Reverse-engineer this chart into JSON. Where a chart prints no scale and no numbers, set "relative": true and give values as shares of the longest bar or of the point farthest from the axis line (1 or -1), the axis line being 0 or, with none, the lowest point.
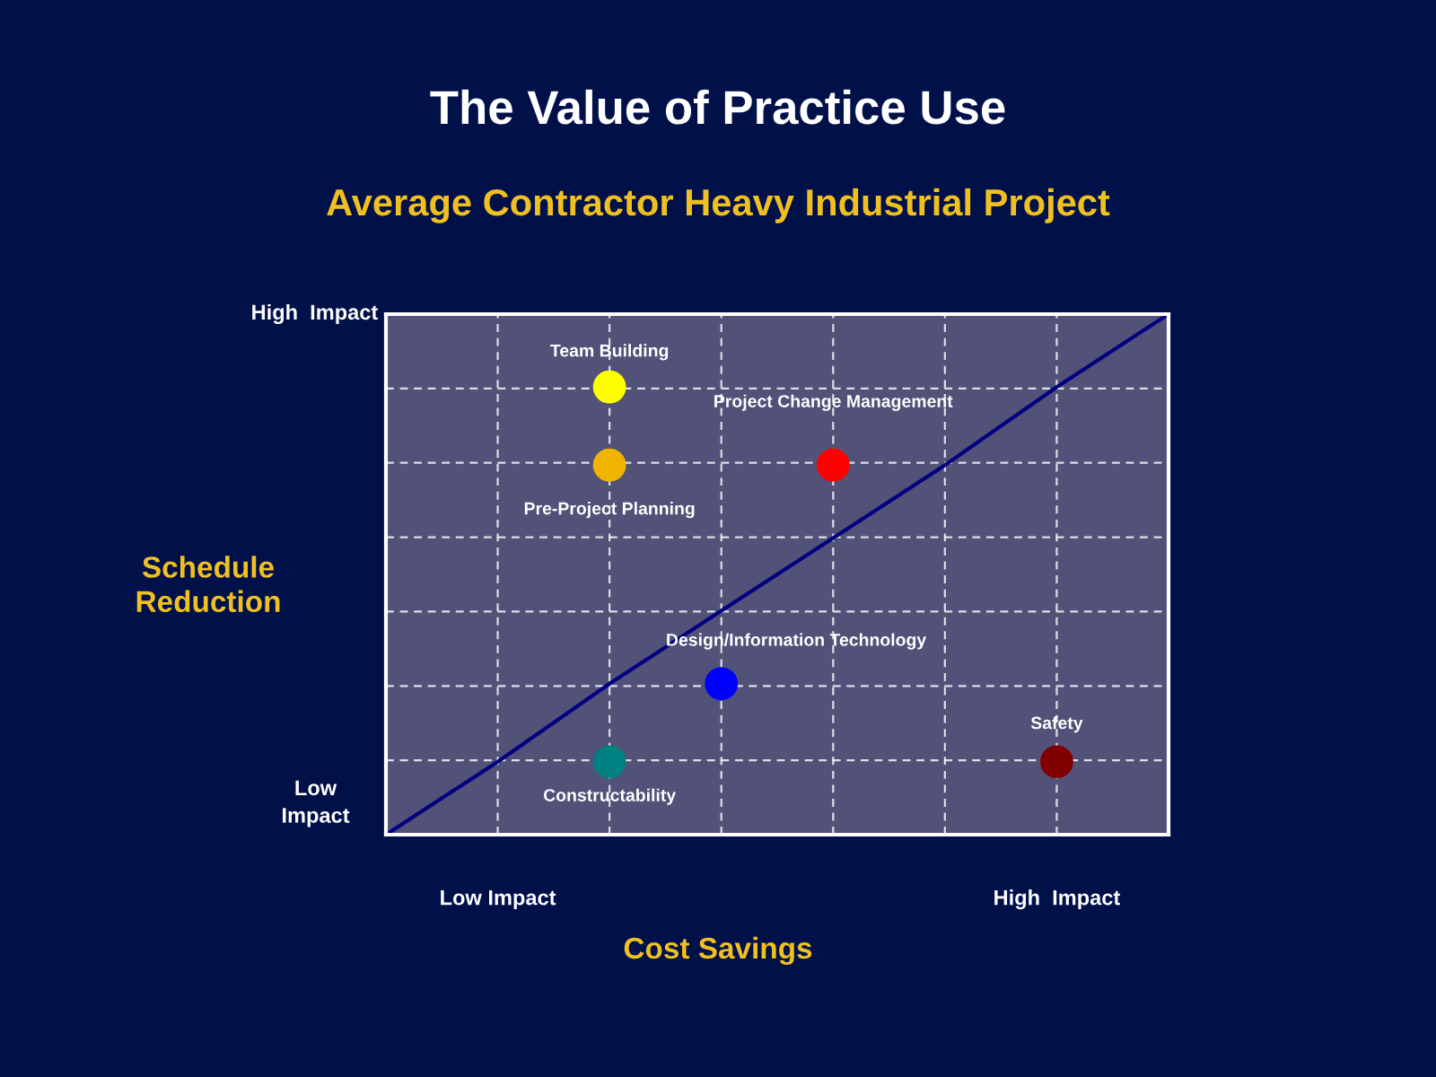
{
  "chart_data": {
    "type": "scatter",
    "relative": true,
    "title": "The Value of Practice Use",
    "subtitle": "Average Contractor Heavy Industrial Project",
    "xlabel": "Cost Savings",
    "ylabel": "Schedule\nReduction",
    "categories": [
      null,
      "Low Impact",
      null,
      null,
      null,
      null,
      "High  Impact",
      null
    ],
    "annotations": [
      "High  Impact",
      "Low\nImpact"
    ],
    "grid": true,
    "marker": "circle",
    "series": [
      {
        "type": "line",
        "color": "#000080",
        "line_style": "solid",
        "marker": "none",
        "values": [
          0,
          0.14,
          0.29,
          0.43,
          0.57,
          0.71,
          0.86,
          1
        ]
      },
      {
        "name": "Team Building",
        "color": "#ffff00",
        "values": [
          null,
          null,
          0.86,
          null,
          null,
          null,
          null,
          null
        ]
      },
      {
        "name": "Pre-Project Planning",
        "color": "#f0b400",
        "values": [
          null,
          null,
          0.71,
          null,
          null,
          null,
          null,
          null
        ]
      },
      {
        "name": "Project Change Management",
        "color": "#ff0000",
        "values": [
          null,
          null,
          null,
          null,
          0.71,
          null,
          null,
          null
        ]
      },
      {
        "name": "Design/Information Technology",
        "color": "#0000ff",
        "values": [
          null,
          null,
          null,
          0.29,
          null,
          null,
          null,
          null
        ]
      },
      {
        "name": "Safety",
        "color": "#800000",
        "values": [
          null,
          null,
          null,
          null,
          null,
          null,
          0.14,
          null
        ]
      },
      {
        "name": "Constructability",
        "color": "#008080",
        "values": [
          null,
          null,
          0.14,
          null,
          null,
          null,
          null,
          null
        ]
      }
    ]
  }
}
